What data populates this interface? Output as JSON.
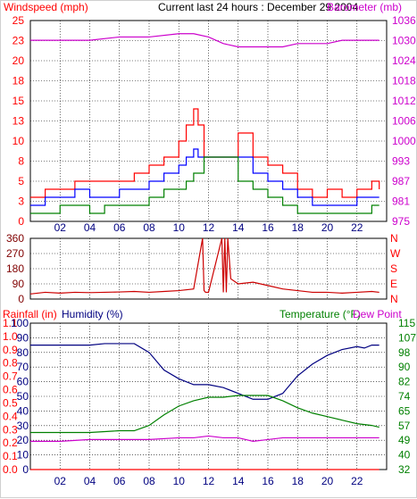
{
  "header": {
    "title": "Current last 24 hours : December 29 2004",
    "left_label": "Windspeed (mph)",
    "right_label": "Barometer (mb)"
  },
  "colors": {
    "wind": "#ff0000",
    "wind_avg": "#0000ff",
    "wind_low": "#008000",
    "barometer": "#cc00cc",
    "direction": "#cc0000",
    "humidity": "#000080",
    "temperature": "#008000",
    "dew_point": "#cc00cc",
    "rain": "#ff0000",
    "axis_dark_red": "#800000",
    "grid": "#000000"
  },
  "chart_data": [
    {
      "type": "line",
      "title": "Current last 24 hours : December 29 2004",
      "ylabel": "Windspeed (mph)",
      "y2label": "Barometer (mb)",
      "x_ticks": [
        "02",
        "04",
        "06",
        "08",
        "10",
        "12",
        "14",
        "16",
        "18",
        "20",
        "22"
      ],
      "ylim": [
        0,
        25
      ],
      "y_ticks": [
        "0",
        "3",
        "5",
        "8",
        "10",
        "13",
        "15",
        "18",
        "20",
        "23",
        "25"
      ],
      "y2lim": [
        975,
        1036
      ],
      "y2_ticks": [
        "975",
        "981",
        "987",
        "993",
        "1000",
        "1006",
        "1012",
        "1018",
        "1024",
        "1030",
        "1036"
      ],
      "grid": true,
      "series": [
        {
          "key": "gust",
          "color": "#ff0000",
          "x": [
            0,
            1,
            2,
            3,
            4,
            5,
            6,
            7,
            8,
            9,
            10,
            10.5,
            11,
            11.3,
            11.7,
            12,
            13,
            13.5,
            14,
            15,
            16,
            17,
            18,
            19,
            20,
            21,
            22,
            23,
            23.5
          ],
          "y": [
            3,
            4,
            4,
            5,
            5,
            5,
            5,
            6,
            7,
            8,
            10,
            12,
            14,
            12,
            8,
            8,
            8,
            8,
            11,
            8,
            7,
            6,
            4,
            3,
            4,
            3,
            4,
            5,
            4
          ]
        },
        {
          "key": "average",
          "color": "#0000ff",
          "x": [
            0,
            1,
            2,
            3,
            4,
            5,
            6,
            7,
            8,
            9,
            10,
            10.5,
            11,
            11.3,
            11.7,
            12,
            13,
            13.5,
            14,
            15,
            16,
            17,
            18,
            19,
            20,
            21,
            22,
            23,
            23.5
          ],
          "y": [
            2,
            3,
            3,
            4,
            3,
            3,
            4,
            4,
            5,
            6,
            7,
            8,
            9,
            8,
            8,
            8,
            8,
            8,
            8,
            6,
            5,
            4,
            3,
            2,
            2,
            2,
            3,
            3,
            3
          ]
        },
        {
          "key": "low",
          "color": "#008000",
          "x": [
            0,
            1,
            2,
            3,
            4,
            5,
            6,
            7,
            8,
            9,
            10,
            10.5,
            11,
            11.3,
            11.7,
            12,
            13,
            13.5,
            14,
            15,
            16,
            17,
            18,
            19,
            20,
            21,
            22,
            23,
            23.5
          ],
          "y": [
            1,
            1,
            2,
            2,
            1,
            2,
            2,
            2,
            3,
            4,
            4,
            5,
            6,
            6,
            8,
            8,
            8,
            8,
            5,
            4,
            3,
            2,
            1,
            1,
            1,
            1,
            1,
            2,
            2
          ]
        },
        {
          "key": "barometer",
          "axis": "right",
          "color": "#cc00cc",
          "x": [
            0,
            2,
            4,
            6,
            8,
            10,
            11,
            12,
            13,
            14,
            15,
            16,
            17,
            18,
            19,
            20,
            21,
            22,
            23,
            23.5
          ],
          "y": [
            1030,
            1030,
            1030,
            1031,
            1031,
            1032,
            1032,
            1031,
            1029,
            1028,
            1028,
            1028,
            1028,
            1029,
            1029,
            1029,
            1030,
            1030,
            1030,
            1030
          ]
        }
      ]
    },
    {
      "type": "line",
      "ylabel": "",
      "right_letters": [
        "N",
        "W",
        "S",
        "E",
        "N"
      ],
      "x_ticks": [
        "02",
        "04",
        "06",
        "08",
        "10",
        "12",
        "14",
        "16",
        "18",
        "20",
        "22"
      ],
      "ylim": [
        0,
        360
      ],
      "y_ticks": [
        "0",
        "90",
        "180",
        "270",
        "360"
      ],
      "grid": true,
      "series": [
        {
          "key": "direction",
          "color": "#cc0000",
          "x": [
            0,
            1,
            2,
            3,
            4,
            5,
            6,
            7,
            8,
            9,
            10,
            11,
            11.6,
            11.7,
            11.8,
            12,
            12.9,
            13,
            13.1,
            13.2,
            13.3,
            13.5,
            14,
            15,
            16,
            17,
            18,
            19,
            20,
            21,
            22,
            23,
            23.5
          ],
          "y": [
            30,
            40,
            35,
            40,
            38,
            40,
            42,
            45,
            40,
            45,
            50,
            60,
            360,
            50,
            40,
            40,
            360,
            40,
            360,
            40,
            360,
            120,
            90,
            100,
            80,
            60,
            50,
            40,
            40,
            35,
            40,
            45,
            40
          ]
        }
      ]
    },
    {
      "type": "line",
      "ylabel": "Rainfall (in)",
      "y2label": "Humidity (%)",
      "y3label": "Temperature (°F)",
      "y4label": "Dew Point",
      "x_ticks": [
        "02",
        "04",
        "06",
        "08",
        "10",
        "12",
        "14",
        "16",
        "18",
        "20",
        "22"
      ],
      "rain_ticks": [
        "0.0",
        "0.1",
        "0.2",
        "0.3",
        "0.4",
        "0.5",
        "0.6",
        "0.7",
        "0.8",
        "0.9",
        "1.0",
        "1.1"
      ],
      "humidity_ticks": [
        "0",
        "10",
        "20",
        "30",
        "40",
        "50",
        "60",
        "70",
        "80",
        "90",
        "100"
      ],
      "temp_ticks": [
        "32",
        "40",
        "49",
        "57",
        "65",
        "74",
        "82",
        "90",
        "98",
        "107",
        "115"
      ],
      "ylim": [
        0,
        1.1
      ],
      "y2lim": [
        0,
        100
      ],
      "y3lim": [
        32,
        115
      ],
      "grid": true,
      "series": [
        {
          "key": "humidity",
          "axis": "humidity",
          "color": "#000080",
          "x": [
            0,
            1,
            2,
            3,
            4,
            5,
            6,
            7,
            8,
            9,
            10,
            11,
            12,
            13,
            14,
            15,
            16,
            17,
            18,
            19,
            20,
            21,
            22,
            22.5,
            23,
            23.5
          ],
          "y": [
            85,
            85,
            85,
            85,
            85,
            86,
            86,
            86,
            80,
            68,
            62,
            58,
            58,
            56,
            52,
            48,
            48,
            52,
            64,
            72,
            78,
            82,
            84,
            83,
            85,
            85
          ]
        },
        {
          "key": "temperature",
          "axis": "temp",
          "color": "#008000",
          "x": [
            0,
            2,
            4,
            6,
            7,
            8,
            9,
            10,
            11,
            12,
            13,
            14,
            15,
            16,
            17,
            18,
            19,
            20,
            21,
            22,
            23,
            23.5
          ],
          "y": [
            53,
            53,
            53,
            54,
            54,
            57,
            63,
            68,
            71,
            73,
            73,
            74,
            74,
            74,
            71,
            67,
            64,
            62,
            60,
            58,
            57,
            56
          ]
        },
        {
          "key": "dew_point",
          "axis": "temp",
          "color": "#cc00cc",
          "x": [
            0,
            2,
            4,
            6,
            8,
            10,
            11,
            12,
            13,
            14,
            15,
            16,
            17,
            18,
            19,
            20,
            21,
            22,
            23,
            23.5
          ],
          "y": [
            48,
            48,
            49,
            49,
            49,
            50,
            50,
            51,
            50,
            50,
            48,
            49,
            50,
            50,
            50,
            50,
            50,
            50,
            50,
            50
          ]
        },
        {
          "key": "rain",
          "axis": "rain",
          "color": "#ff0000",
          "x": [
            0,
            23.5
          ],
          "y": [
            0.0,
            0.0
          ]
        }
      ]
    }
  ]
}
